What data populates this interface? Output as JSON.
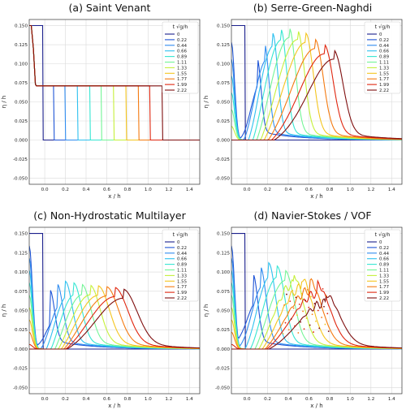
{
  "chart_data": [
    {
      "type": "line",
      "title": "(a) Saint Venant",
      "xlabel": "x / h",
      "ylabel": "η / h",
      "xlim": [
        -0.15,
        1.5
      ],
      "ylim": [
        -0.058,
        0.158
      ],
      "x_ticks": [
        "0.0",
        "0.2",
        "0.4",
        "0.6",
        "0.8",
        "1.0",
        "1.2",
        "1.4"
      ],
      "y_ticks": [
        "-0.050",
        "-0.025",
        "0.000",
        "0.025",
        "0.050",
        "0.075",
        "0.100",
        "0.125",
        "0.150"
      ],
      "grid": true,
      "legend_position": "top-right",
      "legend_title": "t √g/h",
      "model": "sv"
    },
    {
      "type": "line",
      "title": "(b) Serre-Green-Naghdi",
      "xlabel": "x / h",
      "ylabel": "η / h",
      "xlim": [
        -0.15,
        1.5
      ],
      "ylim": [
        -0.058,
        0.158
      ],
      "x_ticks": [
        "0.0",
        "0.2",
        "0.4",
        "0.6",
        "0.8",
        "1.0",
        "1.2",
        "1.4"
      ],
      "y_ticks": [
        "-0.050",
        "-0.025",
        "0.000",
        "0.025",
        "0.050",
        "0.075",
        "0.100",
        "0.125",
        "0.150"
      ],
      "grid": true,
      "legend_position": "top-right",
      "legend_title": "t √g/h",
      "model": "sgn"
    },
    {
      "type": "line",
      "title": "(c) Non-Hydrostatic Multilayer",
      "xlabel": "x / h",
      "ylabel": "η / h",
      "xlim": [
        -0.15,
        1.5
      ],
      "ylim": [
        -0.058,
        0.158
      ],
      "x_ticks": [
        "0.0",
        "0.2",
        "0.4",
        "0.6",
        "0.8",
        "1.0",
        "1.2",
        "1.4"
      ],
      "y_ticks": [
        "-0.050",
        "-0.025",
        "0.000",
        "0.025",
        "0.050",
        "0.075",
        "0.100",
        "0.125",
        "0.150"
      ],
      "grid": true,
      "legend_position": "top-right",
      "legend_title": "t √g/h",
      "model": "nh"
    },
    {
      "type": "line",
      "title": "(d) Navier-Stokes / VOF",
      "xlabel": "x / h",
      "ylabel": "η / h",
      "xlim": [
        -0.15,
        1.5
      ],
      "ylim": [
        -0.058,
        0.158
      ],
      "x_ticks": [
        "0.0",
        "0.2",
        "0.4",
        "0.6",
        "0.8",
        "1.0",
        "1.2",
        "1.4"
      ],
      "y_ticks": [
        "-0.050",
        "-0.025",
        "0.000",
        "0.025",
        "0.050",
        "0.075",
        "0.100",
        "0.125",
        "0.150"
      ],
      "grid": true,
      "legend_position": "top-right",
      "legend_title": "t √g/h",
      "model": "vof"
    }
  ],
  "series_times": [
    "0",
    "0.22",
    "0.44",
    "0.66",
    "0.89",
    "1.11",
    "1.33",
    "1.55",
    "1.77",
    "1.99",
    "2.22"
  ],
  "series_colors": [
    "#1a1f8c",
    "#1f55d6",
    "#2f8cf0",
    "#2ec1ef",
    "#35e6d2",
    "#73f596",
    "#c6f03b",
    "#f4c51f",
    "#f47a10",
    "#e0260f",
    "#7f0f0f"
  ],
  "profiles": {
    "sv": {
      "front_x": [
        -0.02,
        0.08,
        0.19,
        0.31,
        0.43,
        0.54,
        0.66,
        0.78,
        0.9,
        1.01,
        1.13
      ],
      "back_x": [
        -0.12,
        -0.12,
        -0.12,
        -0.12,
        -0.12,
        -0.12,
        -0.12,
        -0.12,
        -0.12,
        -0.12,
        -0.12
      ],
      "plateau": 0.071
    },
    "sgn": {
      "crest_x": [
        0.0,
        0.1,
        0.17,
        0.25,
        0.33,
        0.41,
        0.49,
        0.57,
        0.66,
        0.75,
        0.84
      ],
      "crest_y": [
        0.15,
        0.095,
        0.115,
        0.128,
        0.133,
        0.135,
        0.132,
        0.128,
        0.12,
        0.113,
        0.106
      ]
    },
    "nh": {
      "crest_x": [
        0.0,
        0.05,
        0.12,
        0.2,
        0.28,
        0.36,
        0.44,
        0.52,
        0.6,
        0.68,
        0.76
      ],
      "crest_y": [
        0.15,
        0.065,
        0.073,
        0.076,
        0.074,
        0.072,
        0.071,
        0.07,
        0.069,
        0.068,
        0.066
      ]
    },
    "vof": {
      "crest_x": [
        0.0,
        0.06,
        0.13,
        0.21,
        0.29,
        0.37,
        0.45,
        0.53,
        0.61,
        0.68,
        0.76
      ],
      "crest_y": [
        0.15,
        0.085,
        0.095,
        0.1,
        0.096,
        0.09,
        0.085,
        0.08,
        0.076,
        0.072,
        0.06
      ]
    }
  }
}
